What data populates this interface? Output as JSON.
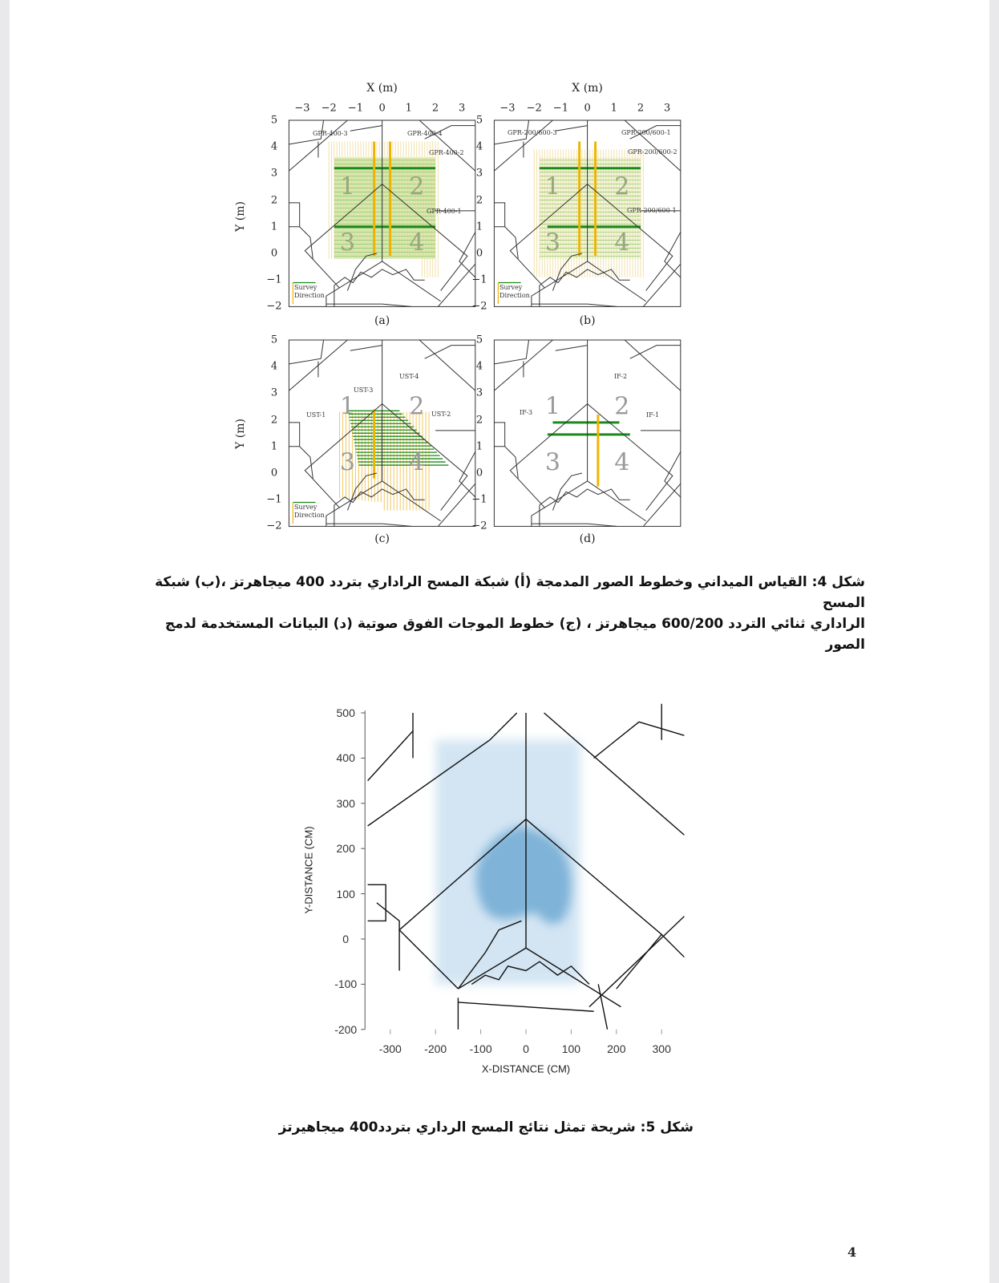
{
  "figure4": {
    "x_axis_label": "X (m)",
    "y_axis_label": "Y (m)",
    "x_ticks": [
      "−3",
      "−2",
      "−1",
      "0",
      "1",
      "2",
      "3"
    ],
    "y_ticks": [
      "5",
      "4",
      "3",
      "2",
      "1",
      "0",
      "−1",
      "−2"
    ],
    "survey_direction": [
      "Survey",
      "Direction"
    ],
    "region_numbers": [
      "1",
      "2",
      "3",
      "4"
    ],
    "panels": [
      {
        "id": "a",
        "subcaption": "(a)",
        "line_labels": [
          "GPR-400-3",
          "GPR-400-4",
          "GPR-400-2",
          "GPR-400-1"
        ]
      },
      {
        "id": "b",
        "subcaption": "(b)",
        "line_labels": [
          "GPR-200/600-3",
          "GPR-200/600-1",
          "GPR-200/600-2",
          "GPR-200/600-1"
        ]
      },
      {
        "id": "c",
        "subcaption": "(c)",
        "line_labels": [
          "UST-3",
          "UST-4",
          "UST-1",
          "UST-2"
        ]
      },
      {
        "id": "d",
        "subcaption": "(d)",
        "line_labels": [
          "IF-2",
          "IF-3",
          "IF-1"
        ]
      }
    ],
    "colors": {
      "green": "#1a8a1a",
      "yellow": "#f0b400",
      "light_green": "#c6e3a0",
      "light_yellow": "#f3e2a8"
    },
    "caption_line1": "شكل 4: القياس الميداني وخطوط الصور المدمجة (أ) شبكة المسح الراداري بتردد 400 ميجاهرتز ،(ب) شبكة المسح",
    "caption_line2": "الراداري  ثنائي التردد 600/200 ميجاهرتز ، (ج) خطوط الموجات الفوق صوتية (د) البيانات المستخدمة لدمج الصور"
  },
  "figure5": {
    "y_axis_label": "Y-DISTANCE (CM)",
    "x_axis_label": "X-DISTANCE (CM)",
    "y_ticks": [
      "500",
      "400",
      "300",
      "200",
      "100",
      "0",
      "-100",
      "-200"
    ],
    "x_ticks": [
      "-300",
      "-200",
      "-100",
      "0",
      "100",
      "200",
      "300"
    ],
    "colors": {
      "light_blue": "#cfe3f2",
      "dark_blue": "#7fb3d8"
    },
    "caption": "شكل 5: شريحة تمثل نتائج المسح الرداري بتردد400 ميجاهيرتز"
  },
  "page_number": "4"
}
